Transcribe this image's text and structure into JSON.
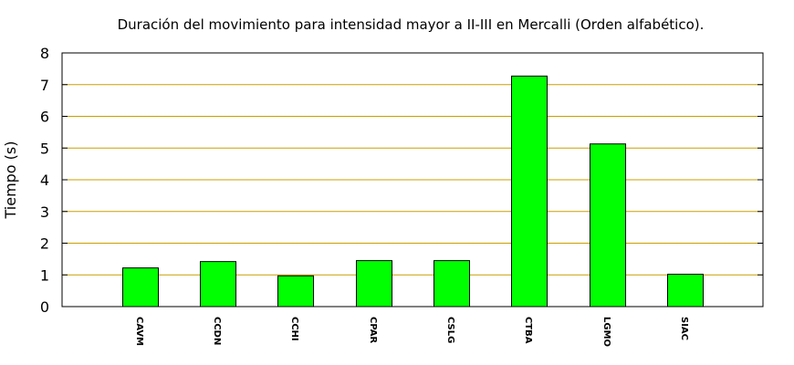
{
  "chart_data": {
    "type": "bar",
    "title": "Duración del movimiento para intensidad mayor a II-III en Mercalli (Orden alfabético).",
    "xlabel": "",
    "ylabel": "Tiempo (s)",
    "ylim": [
      0,
      8
    ],
    "yticks": [
      "0",
      "1",
      "2",
      "3",
      "4",
      "5",
      "6",
      "7",
      "8"
    ],
    "categories": [
      "CAVM",
      "CCDN",
      "CCHI",
      "CPAR",
      "CSLG",
      "CTBA",
      "LGMO",
      "SIAC"
    ],
    "values": [
      1.22,
      1.42,
      0.97,
      1.45,
      1.45,
      7.27,
      5.13,
      1.02
    ],
    "grid": "horizontal",
    "colors": {
      "bar": "#00ff00",
      "grid": "#c8a000",
      "axis": "#000000"
    }
  }
}
